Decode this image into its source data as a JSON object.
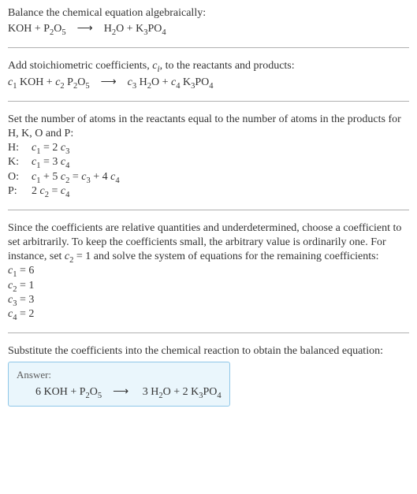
{
  "section1": {
    "intro": "Balance the chemical equation algebraically:",
    "equation_html": "KOH + P<sub>2</sub>O<sub>5</sub> ⟶ H<sub>2</sub>O + K<sub>3</sub>PO<sub>4</sub>"
  },
  "section2": {
    "intro_html": "Add stoichiometric coefficients, <i>c</i><span class='sub-i'>i</span>, to the reactants and products:",
    "equation_html": "<i>c</i><sub>1</sub> KOH + <i>c</i><sub>2</sub> P<sub>2</sub>O<sub>5</sub> ⟶ <i>c</i><sub>3</sub> H<sub>2</sub>O + <i>c</i><sub>4</sub> K<sub>3</sub>PO<sub>4</sub>"
  },
  "section3": {
    "intro": "Set the number of atoms in the reactants equal to the number of atoms in the products for H, K, O and P:",
    "rows": [
      {
        "label": "H:",
        "eq_html": "<i>c</i><sub>1</sub> = 2 <i>c</i><sub>3</sub>"
      },
      {
        "label": "K:",
        "eq_html": "<i>c</i><sub>1</sub> = 3 <i>c</i><sub>4</sub>"
      },
      {
        "label": "O:",
        "eq_html": "<i>c</i><sub>1</sub> + 5 <i>c</i><sub>2</sub> = <i>c</i><sub>3</sub> + 4 <i>c</i><sub>4</sub>"
      },
      {
        "label": "P:",
        "eq_html": "2 <i>c</i><sub>2</sub> = <i>c</i><sub>4</sub>"
      }
    ]
  },
  "section4": {
    "intro_html": "Since the coefficients are relative quantities and underdetermined, choose a coefficient to set arbitrarily. To keep the coefficients small, the arbitrary value is ordinarily one. For instance, set <i>c</i><sub>2</sub> = 1 and solve the system of equations for the remaining coefficients:",
    "rows": [
      {
        "eq_html": "<i>c</i><sub>1</sub> = 6"
      },
      {
        "eq_html": "<i>c</i><sub>2</sub> = 1"
      },
      {
        "eq_html": "<i>c</i><sub>3</sub> = 3"
      },
      {
        "eq_html": "<i>c</i><sub>4</sub> = 2"
      }
    ]
  },
  "section5": {
    "intro": "Substitute the coefficients into the chemical reaction to obtain the balanced equation:",
    "answer_label": "Answer:",
    "answer_eq_html": "6 KOH + P<sub>2</sub>O<sub>5</sub> ⟶  3 H<sub>2</sub>O + 2 K<sub>3</sub>PO<sub>4</sub>"
  },
  "colors": {
    "rule": "#b0b0b0",
    "answer_border": "#8fc7e8",
    "answer_bg": "#eaf6fc"
  }
}
